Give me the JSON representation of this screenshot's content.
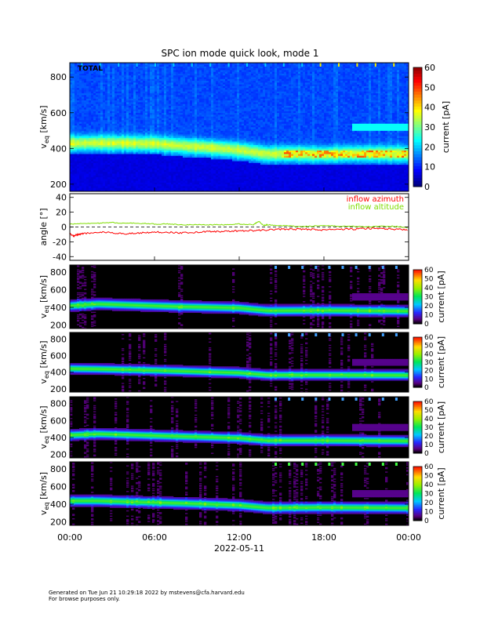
{
  "title": "SPC ion mode quick look, mode 1",
  "footer": {
    "line1": "Generated on Tue Jun 21 10:29:18 2022 by mstevens@cfa.harvard.edu",
    "line2": "For browse purposes only."
  },
  "chart_data": [
    {
      "type": "heatmap",
      "panel": "total",
      "label": "TOTAL",
      "ylabel": "v_eq [km/s]",
      "ylim": [
        160,
        880
      ],
      "yticks": [
        200,
        400,
        600,
        800
      ],
      "colorbar": {
        "label": "current [pA]",
        "ticks": [
          0,
          10,
          20,
          30,
          40,
          50,
          60
        ],
        "range": [
          0,
          60
        ]
      },
      "background": "blue",
      "core_track_km_s": [
        {
          "time_h": 0,
          "v": 430
        },
        {
          "time_h": 2,
          "v": 432
        },
        {
          "time_h": 4,
          "v": 430
        },
        {
          "time_h": 6,
          "v": 428
        },
        {
          "time_h": 8,
          "v": 415
        },
        {
          "time_h": 10,
          "v": 405
        },
        {
          "time_h": 12,
          "v": 392
        },
        {
          "time_h": 14,
          "v": 370
        },
        {
          "time_h": 15,
          "v": 372
        },
        {
          "time_h": 18,
          "v": 368
        },
        {
          "time_h": 20,
          "v": 372
        },
        {
          "time_h": 22,
          "v": 372
        },
        {
          "time_h": 24,
          "v": 370
        }
      ]
    },
    {
      "type": "line",
      "panel": "angle",
      "ylabel": "angle [°]",
      "ylim": [
        -45,
        45
      ],
      "yticks": [
        -40,
        -20,
        0,
        20,
        40
      ],
      "series": [
        {
          "name": "inflow azimuth",
          "color": "#ff0000",
          "points": [
            [
              0,
              -9
            ],
            [
              0.3,
              -12
            ],
            [
              0.6,
              -10
            ],
            [
              1,
              -9
            ],
            [
              2,
              -7
            ],
            [
              3,
              -8
            ],
            [
              4,
              -9
            ],
            [
              5,
              -8
            ],
            [
              6,
              -7
            ],
            [
              7,
              -7
            ],
            [
              8,
              -8
            ],
            [
              9,
              -7
            ],
            [
              10,
              -6
            ],
            [
              11,
              -6
            ],
            [
              12,
              -5
            ],
            [
              13,
              -5
            ],
            [
              14,
              -4
            ],
            [
              15,
              -3
            ],
            [
              16,
              -3
            ],
            [
              17,
              -3
            ],
            [
              18,
              -4
            ],
            [
              19,
              -3
            ],
            [
              20,
              -3
            ],
            [
              21,
              -2
            ],
            [
              22,
              -2
            ],
            [
              23,
              -3
            ],
            [
              24,
              -4
            ]
          ]
        },
        {
          "name": "inflow altitude",
          "color": "#7fdd00",
          "points": [
            [
              0,
              4
            ],
            [
              1,
              5
            ],
            [
              2,
              5
            ],
            [
              3,
              6
            ],
            [
              4,
              5
            ],
            [
              5,
              5
            ],
            [
              6,
              4
            ],
            [
              7,
              4
            ],
            [
              8,
              3
            ],
            [
              9,
              3
            ],
            [
              10,
              3
            ],
            [
              11,
              3
            ],
            [
              12,
              4
            ],
            [
              13,
              3
            ],
            [
              13.4,
              8
            ],
            [
              13.7,
              2
            ],
            [
              14,
              3
            ],
            [
              15,
              2
            ],
            [
              16,
              1
            ],
            [
              17,
              1
            ],
            [
              18,
              2
            ],
            [
              19,
              1
            ],
            [
              20,
              1
            ],
            [
              21,
              0
            ],
            [
              22,
              1
            ],
            [
              23,
              1
            ],
            [
              24,
              -1
            ]
          ]
        }
      ]
    },
    {
      "type": "heatmap",
      "panel": "cup-1",
      "ylabel": "v_eq [km/s]",
      "ylim": [
        160,
        880
      ],
      "yticks": [
        200,
        400,
        600,
        800
      ],
      "colorbar": {
        "label": "current [pA]",
        "ticks": [
          0,
          10,
          20,
          30,
          40,
          50,
          60
        ],
        "range": [
          0,
          60
        ]
      },
      "background": "black",
      "core_track_km_s": [
        {
          "time_h": 0,
          "v": 420
        },
        {
          "time_h": 2,
          "v": 440
        },
        {
          "time_h": 8,
          "v": 410
        },
        {
          "time_h": 12,
          "v": 395
        },
        {
          "time_h": 14,
          "v": 365
        },
        {
          "time_h": 18,
          "v": 368
        },
        {
          "time_h": 24,
          "v": 360
        }
      ]
    },
    {
      "type": "heatmap",
      "panel": "cup-2",
      "ylabel": "v_eq [km/s]",
      "ylim": [
        160,
        880
      ],
      "yticks": [
        200,
        400,
        600,
        800
      ],
      "colorbar": {
        "label": "current [pA]",
        "ticks": [
          0,
          10,
          20,
          30,
          40,
          50,
          60
        ],
        "range": [
          0,
          60
        ]
      },
      "background": "black",
      "core_track_km_s": [
        {
          "time_h": 0,
          "v": 445
        },
        {
          "time_h": 2,
          "v": 440
        },
        {
          "time_h": 8,
          "v": 415
        },
        {
          "time_h": 12,
          "v": 395
        },
        {
          "time_h": 14,
          "v": 368
        },
        {
          "time_h": 18,
          "v": 368
        },
        {
          "time_h": 24,
          "v": 365
        }
      ]
    },
    {
      "type": "heatmap",
      "panel": "cup-3",
      "ylabel": "v_eq [km/s]",
      "ylim": [
        160,
        880
      ],
      "yticks": [
        200,
        400,
        600,
        800
      ],
      "colorbar": {
        "label": "current [pA]",
        "ticks": [
          0,
          10,
          20,
          30,
          40,
          50,
          60
        ],
        "range": [
          0,
          60
        ]
      },
      "background": "black",
      "core_track_km_s": [
        {
          "time_h": 0,
          "v": 430
        },
        {
          "time_h": 2,
          "v": 445
        },
        {
          "time_h": 8,
          "v": 415
        },
        {
          "time_h": 12,
          "v": 395
        },
        {
          "time_h": 14,
          "v": 368
        },
        {
          "time_h": 18,
          "v": 368
        },
        {
          "time_h": 24,
          "v": 362
        }
      ]
    },
    {
      "type": "heatmap",
      "panel": "cup-4",
      "ylabel": "v_eq [km/s]",
      "ylim": [
        160,
        880
      ],
      "yticks": [
        200,
        400,
        600,
        800
      ],
      "colorbar": {
        "label": "current [pA]",
        "ticks": [
          0,
          10,
          20,
          30,
          40,
          50,
          60
        ],
        "range": [
          0,
          60
        ]
      },
      "background": "black",
      "core_track_km_s": [
        {
          "time_h": 0,
          "v": 440
        },
        {
          "time_h": 2,
          "v": 440
        },
        {
          "time_h": 8,
          "v": 412
        },
        {
          "time_h": 12,
          "v": 390
        },
        {
          "time_h": 14,
          "v": 360
        },
        {
          "time_h": 18,
          "v": 365
        },
        {
          "time_h": 24,
          "v": 358
        }
      ]
    }
  ],
  "x_axis": {
    "ticks": [
      "00:00",
      "06:00",
      "12:00",
      "18:00",
      "00:00"
    ],
    "tick_hours": [
      0,
      6,
      12,
      18,
      24
    ],
    "xlabel": "2022-05-11",
    "xlim": [
      0,
      24
    ]
  }
}
